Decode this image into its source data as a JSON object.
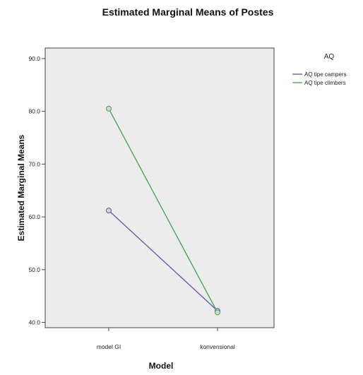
{
  "chart_data": {
    "type": "line",
    "title": "Estimated Marginal Means of Postes",
    "xlabel": "Model",
    "ylabel": "Estimated Marginal Means",
    "categories": [
      "model GI",
      "konvensional"
    ],
    "yticks": [
      "40.0",
      "50.0",
      "60.0",
      "70.0",
      "80.0",
      "90.0"
    ],
    "ylim": [
      39,
      92
    ],
    "legend": {
      "title": "AQ",
      "placement": "right"
    },
    "series": [
      {
        "name": "AQ tipe campers",
        "values": [
          61.2,
          42.2
        ],
        "color": "#5b5ba8"
      },
      {
        "name": "AQ tipe climbers",
        "values": [
          80.5,
          41.9
        ],
        "color": "#3fa34d"
      }
    ],
    "plot_background": "#ececec",
    "grid": false
  }
}
